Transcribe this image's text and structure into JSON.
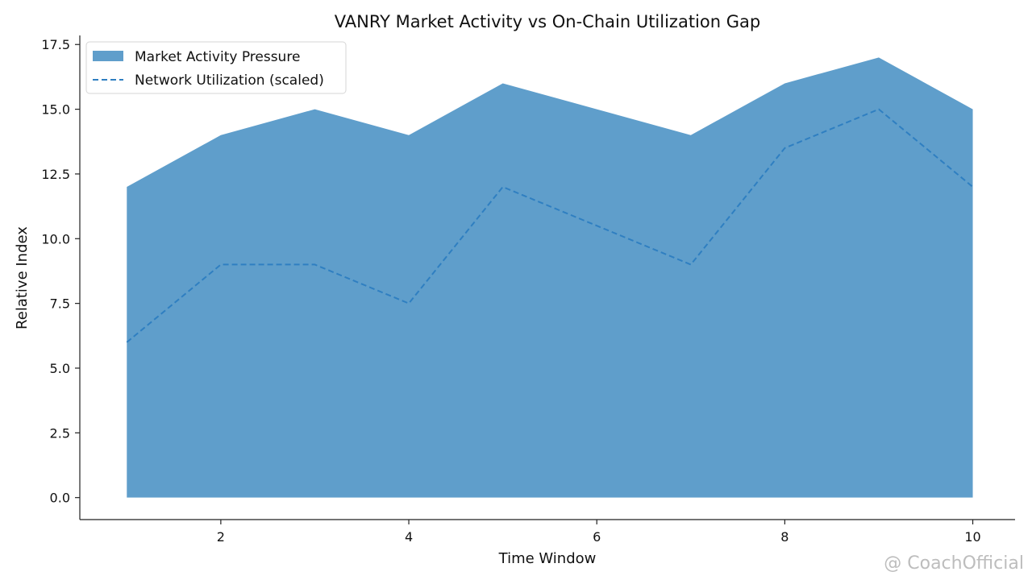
{
  "chart_data": {
    "type": "area",
    "title": "VANRY Market Activity vs On-Chain Utilization Gap",
    "xlabel": "Time Window",
    "ylabel": "Relative Index",
    "x": [
      1,
      2,
      3,
      4,
      5,
      6,
      7,
      8,
      9,
      10
    ],
    "xlim": [
      0.5,
      10.45
    ],
    "ylim": [
      -0.85,
      17.85
    ],
    "xticks": [
      2,
      4,
      6,
      8,
      10
    ],
    "yticks": [
      "0.0",
      "2.5",
      "5.0",
      "7.5",
      "10.0",
      "12.5",
      "15.0",
      "17.5"
    ],
    "grid": false,
    "legend_position": "top-left",
    "series": [
      {
        "name": "Market Activity Pressure",
        "style": "filled-area",
        "color": "#5f9ecb",
        "values": [
          12,
          14,
          15,
          14,
          16,
          15,
          14,
          16,
          17,
          15
        ]
      },
      {
        "name": "Network Utilization (scaled)",
        "style": "dashed-line",
        "color": "#2f7fc1",
        "values": [
          6,
          9,
          9,
          7.5,
          12,
          10.5,
          9,
          13.5,
          15,
          12
        ]
      }
    ]
  },
  "watermark": "@ CoachOfficial"
}
